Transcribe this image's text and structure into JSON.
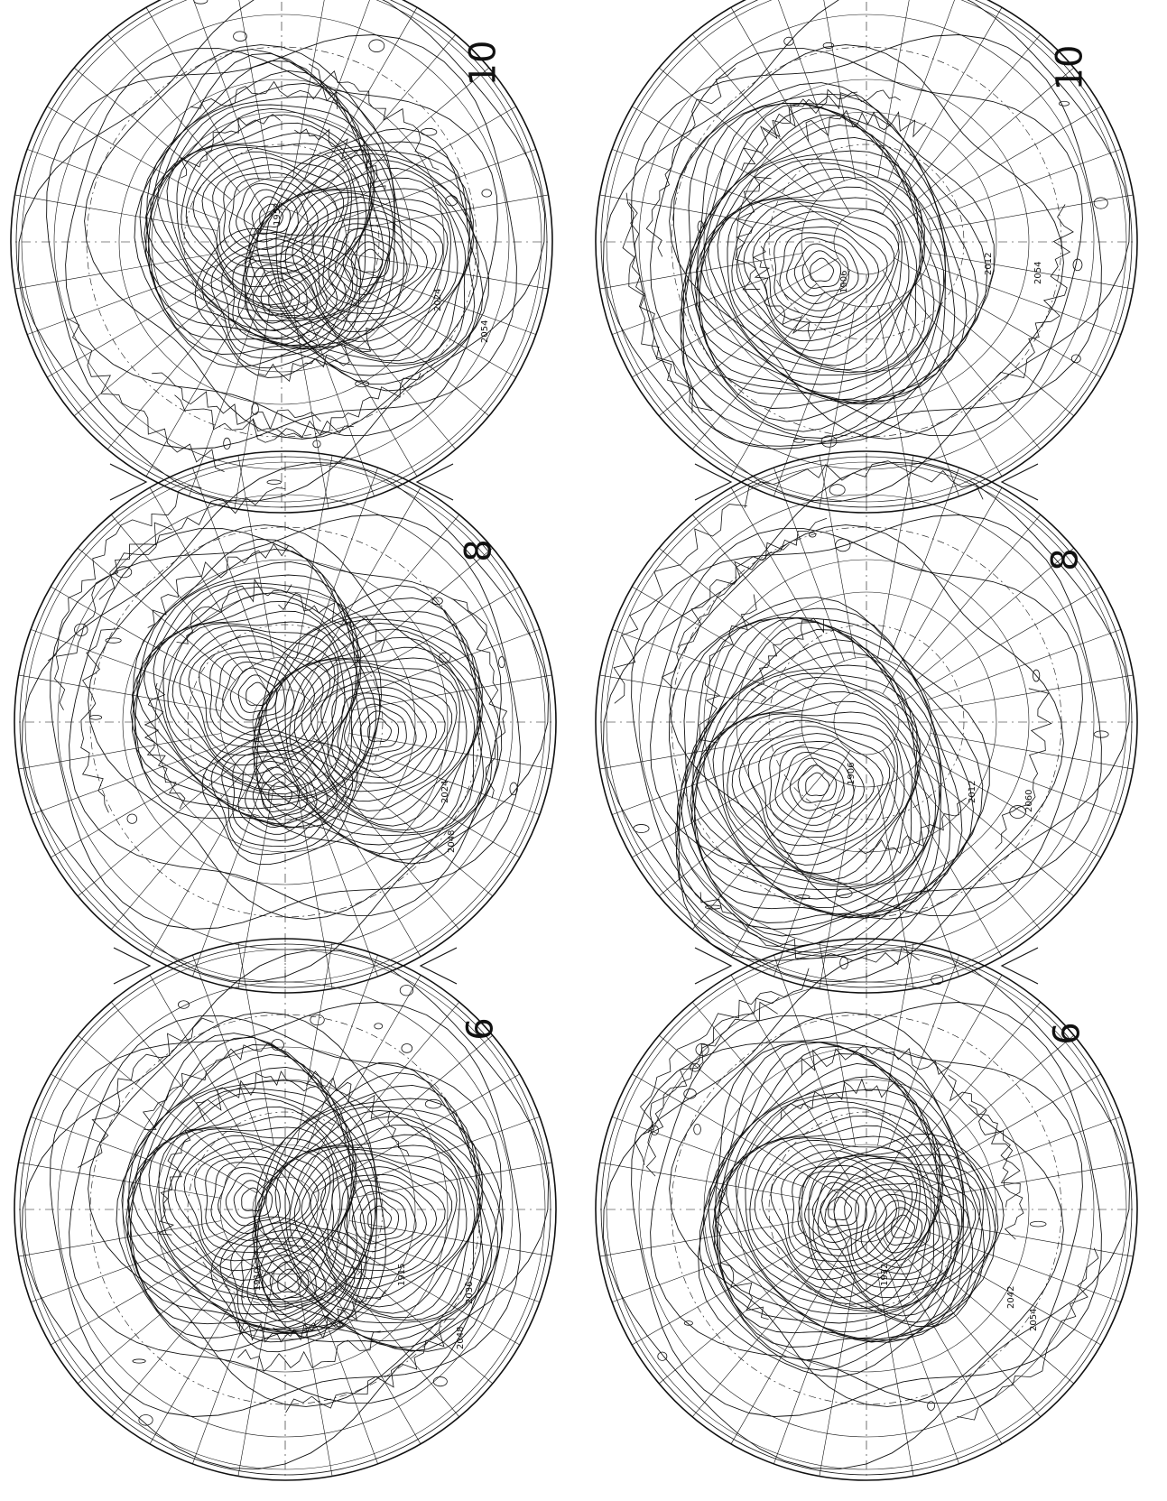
{
  "colors": {
    "ink": "#111111",
    "paper": "#ffffff",
    "grid": "#222222"
  },
  "panels": [
    {
      "id": "top-left",
      "number": "10",
      "labels": [
        "1952",
        "2024",
        "2054"
      ]
    },
    {
      "id": "middle-left",
      "number": "8",
      "labels": [
        "2024",
        "2048"
      ]
    },
    {
      "id": "bottom-left",
      "number": "6",
      "labels": [
        "1910",
        "1915",
        "2036",
        "2048"
      ]
    },
    {
      "id": "top-right",
      "number": "10",
      "labels": [
        "1906",
        "2012",
        "2054"
      ]
    },
    {
      "id": "middle-right",
      "number": "8",
      "labels": [
        "1906",
        "2012",
        "2060"
      ]
    },
    {
      "id": "bottom-right",
      "number": "6",
      "labels": [
        "1932",
        "2042",
        "2054"
      ]
    }
  ]
}
